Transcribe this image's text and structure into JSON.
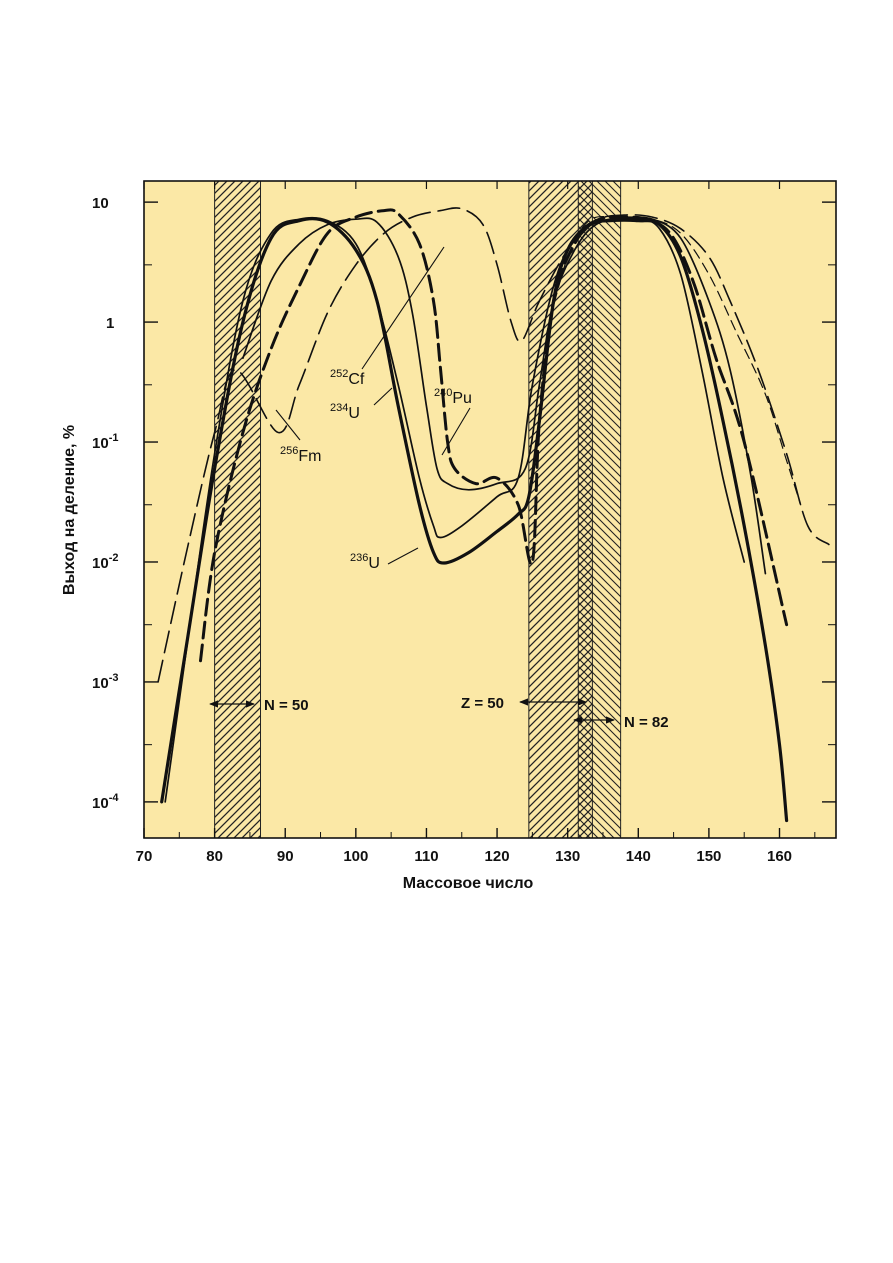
{
  "chart_data": {
    "type": "line",
    "title": "",
    "xlabel": "Массовое число",
    "ylabel": "Выход на деление, %",
    "xlim": [
      70,
      168
    ],
    "ylim": [
      5e-05,
      15
    ],
    "yscale": "log",
    "background": "#fbe8a6",
    "x_ticks": [
      70,
      80,
      90,
      100,
      110,
      120,
      130,
      140,
      150,
      160
    ],
    "y_ticks": [
      {
        "value": 10,
        "base": "10",
        "exp": ""
      },
      {
        "value": 1,
        "base": "1",
        "exp": ""
      },
      {
        "value": 0.1,
        "base": "10",
        "exp": "-1"
      },
      {
        "value": 0.01,
        "base": "10",
        "exp": "-2"
      },
      {
        "value": 0.001,
        "base": "10",
        "exp": "-3"
      },
      {
        "value": 0.0001,
        "base": "10",
        "exp": "-4"
      }
    ],
    "shaded_regions": [
      {
        "x_range": [
          80,
          86.5
        ],
        "label": "N = 50"
      },
      {
        "x_range": [
          124.5,
          133.5
        ],
        "label": "Z = 50"
      },
      {
        "x_range": [
          131.5,
          137.5
        ],
        "label": "N = 82"
      }
    ],
    "series": [
      {
        "name": "236U",
        "style": "solid-thick",
        "points": [
          [
            72.5,
            0.0001
          ],
          [
            76,
            0.002
          ],
          [
            80,
            0.06
          ],
          [
            84,
            1.0
          ],
          [
            88,
            5.0
          ],
          [
            92,
            7.0
          ],
          [
            96,
            6.8
          ],
          [
            100,
            4.0
          ],
          [
            103,
            1.5
          ],
          [
            106,
            0.2
          ],
          [
            109,
            0.03
          ],
          [
            111,
            0.012
          ],
          [
            112.5,
            0.0098
          ],
          [
            116,
            0.012
          ],
          [
            120,
            0.018
          ],
          [
            123,
            0.025
          ],
          [
            124.5,
            0.035
          ],
          [
            126,
            0.15
          ],
          [
            128,
            1.5
          ],
          [
            130,
            4.0
          ],
          [
            133,
            6.5
          ],
          [
            136,
            7.0
          ],
          [
            140,
            7.0
          ],
          [
            143,
            6.5
          ],
          [
            146,
            3.5
          ],
          [
            149,
            0.9
          ],
          [
            152,
            0.15
          ],
          [
            155,
            0.02
          ],
          [
            158,
            0.002
          ],
          [
            160,
            0.0003
          ],
          [
            161,
            7e-05
          ]
        ]
      },
      {
        "name": "234U",
        "style": "solid",
        "points": [
          [
            73,
            0.0001
          ],
          [
            76.5,
            0.003
          ],
          [
            80,
            0.08
          ],
          [
            84,
            1.5
          ],
          [
            88,
            5.5
          ],
          [
            92,
            7.2
          ],
          [
            96,
            7.0
          ],
          [
            100,
            4.5
          ],
          [
            103,
            1.5
          ],
          [
            106,
            0.3
          ],
          [
            109,
            0.05
          ],
          [
            111,
            0.02
          ],
          [
            112,
            0.016
          ],
          [
            115,
            0.02
          ],
          [
            120,
            0.035
          ],
          [
            123,
            0.05
          ],
          [
            125,
            0.3
          ],
          [
            128,
            2.0
          ],
          [
            131,
            5.0
          ],
          [
            135,
            7.0
          ],
          [
            140,
            7.2
          ],
          [
            143,
            6.0
          ],
          [
            146,
            2.5
          ],
          [
            149,
            0.4
          ],
          [
            152,
            0.05
          ],
          [
            155,
            0.01
          ]
        ]
      },
      {
        "name": "252Cf",
        "style": "solid",
        "points": [
          [
            84,
            0.5
          ],
          [
            88,
            2.2
          ],
          [
            92,
            4.5
          ],
          [
            96,
            6.5
          ],
          [
            100,
            7.2
          ],
          [
            103,
            6.8
          ],
          [
            106,
            3.5
          ],
          [
            108,
            1.2
          ],
          [
            110,
            0.2
          ],
          [
            111.5,
            0.06
          ],
          [
            113,
            0.045
          ],
          [
            116,
            0.04
          ],
          [
            120,
            0.045
          ],
          [
            124,
            0.06
          ],
          [
            126,
            0.3
          ],
          [
            128,
            1.5
          ],
          [
            131,
            4.0
          ],
          [
            134,
            6.5
          ],
          [
            138,
            7.3
          ],
          [
            142,
            7.2
          ],
          [
            146,
            5.0
          ],
          [
            150,
            1.5
          ],
          [
            153,
            0.4
          ],
          [
            156,
            0.05
          ],
          [
            158,
            0.008
          ]
        ]
      },
      {
        "name": "240Pu",
        "style": "dashed-thick",
        "points": [
          [
            78,
            0.0015
          ],
          [
            80,
            0.012
          ],
          [
            84,
            0.12
          ],
          [
            88,
            0.6
          ],
          [
            92,
            2.0
          ],
          [
            96,
            5.5
          ],
          [
            100,
            7.5
          ],
          [
            104,
            8.5
          ],
          [
            106,
            8.0
          ],
          [
            109,
            4.5
          ],
          [
            111,
            1.5
          ],
          [
            112,
            0.4
          ],
          [
            113,
            0.1
          ],
          [
            114,
            0.06
          ],
          [
            117,
            0.045
          ],
          [
            120,
            0.05
          ],
          [
            123,
            0.03
          ],
          [
            125,
            0.01
          ],
          [
            126,
            0.15
          ],
          [
            128,
            1.5
          ],
          [
            131,
            4.5
          ],
          [
            134,
            7.0
          ],
          [
            138,
            7.5
          ],
          [
            142,
            7.0
          ],
          [
            145,
            5.0
          ],
          [
            148,
            2.0
          ],
          [
            151,
            0.5
          ],
          [
            155,
            0.1
          ],
          [
            161,
            0.003
          ]
        ]
      },
      {
        "name": "256Fm",
        "style": "dashed-long",
        "points": [
          [
            72,
            0.001
          ],
          [
            76,
            0.012
          ],
          [
            80,
            0.12
          ],
          [
            83,
            0.4
          ],
          [
            89,
            0.12
          ],
          [
            92,
            0.3
          ],
          [
            96,
            1.2
          ],
          [
            100,
            3.0
          ],
          [
            104,
            5.5
          ],
          [
            108,
            7.5
          ],
          [
            112,
            8.5
          ],
          [
            115,
            8.8
          ],
          [
            118,
            6.5
          ],
          [
            120,
            3.0
          ],
          [
            122,
            1.0
          ],
          [
            123.5,
            0.7
          ],
          [
            126,
            1.5
          ],
          [
            130,
            4.0
          ],
          [
            134,
            7.0
          ],
          [
            138,
            7.8
          ],
          [
            142,
            7.5
          ],
          [
            146,
            6.0
          ],
          [
            150,
            3.5
          ],
          [
            153,
            1.5
          ],
          [
            157,
            0.4
          ],
          [
            161,
            0.08
          ],
          [
            164,
            0.02
          ],
          [
            167,
            0.014
          ]
        ]
      },
      {
        "name": "",
        "style": "dashed-thin",
        "points": [
          [
            127,
            0.8
          ],
          [
            130,
            3.5
          ],
          [
            133,
            7.0
          ],
          [
            137,
            7.5
          ],
          [
            142,
            7.2
          ],
          [
            146,
            5.5
          ],
          [
            150,
            2.5
          ],
          [
            154,
            0.8
          ],
          [
            158,
            0.25
          ],
          [
            161,
            0.07
          ],
          [
            163,
            0.03
          ]
        ]
      }
    ]
  }
}
